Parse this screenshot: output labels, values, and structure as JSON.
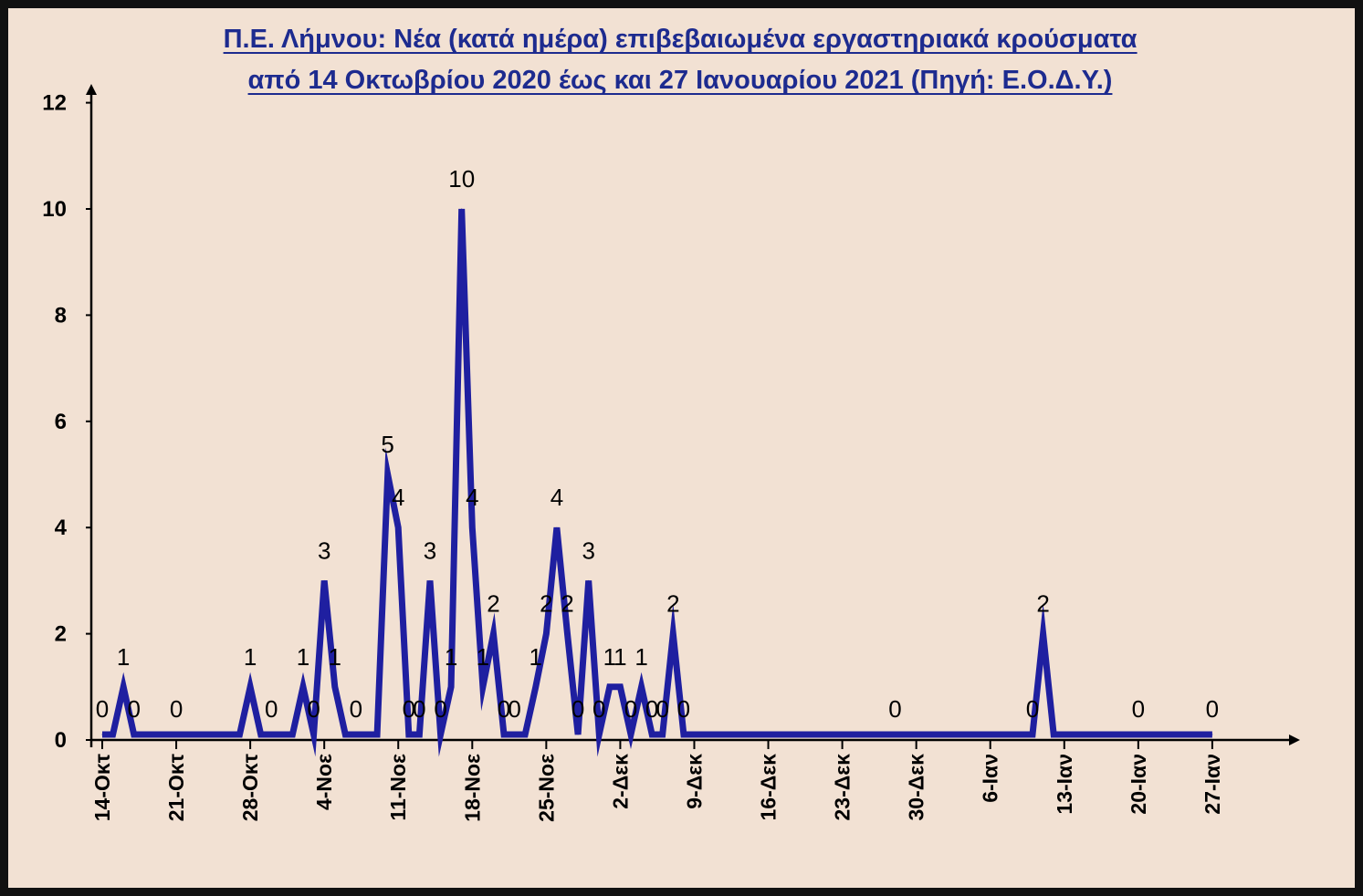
{
  "chart_data": {
    "type": "line",
    "title_line1": "Π.Ε. Λήμνου: Νέα (κατά ημέρα) επιβεβαιωμένα εργαστηριακά κρούσματα",
    "title_line2": "από 14 Οκτωβρίου 2020 έως και 27 Ιανουαρίου 2021  (Πηγή: Ε.Ο.Δ.Υ.)",
    "xlabel": "",
    "ylabel": "",
    "ylim": [
      0,
      12
    ],
    "yticks": [
      "0",
      "2",
      "4",
      "6",
      "8",
      "10",
      "12"
    ],
    "xticks": [
      "14-Οκτ",
      "21-Οκτ",
      "28-Οκτ",
      "4-Νοε",
      "11-Νοε",
      "18-Νοε",
      "25-Νοε",
      "2-Δεκ",
      "9-Δεκ",
      "16-Δεκ",
      "23-Δεκ",
      "30-Δεκ",
      "6-Ιαν",
      "13-Ιαν",
      "20-Ιαν",
      "27-Ιαν"
    ],
    "series": [
      {
        "name": "",
        "color": "#1f1fa0",
        "points": [
          {
            "x": "14-Οκτ",
            "y": 0,
            "label": "0"
          },
          {
            "x": "15-Οκτ",
            "y": 0
          },
          {
            "x": "16-Οκτ",
            "y": 1,
            "label": "1"
          },
          {
            "x": "17-Οκτ",
            "y": 0,
            "label": "0"
          },
          {
            "x": "18-Οκτ",
            "y": 0
          },
          {
            "x": "19-Οκτ",
            "y": 0
          },
          {
            "x": "20-Οκτ",
            "y": 0
          },
          {
            "x": "21-Οκτ",
            "y": 0,
            "label": "0"
          },
          {
            "x": "22-Οκτ",
            "y": 0
          },
          {
            "x": "23-Οκτ",
            "y": 0
          },
          {
            "x": "24-Οκτ",
            "y": 0
          },
          {
            "x": "25-Οκτ",
            "y": 0
          },
          {
            "x": "26-Οκτ",
            "y": 0
          },
          {
            "x": "27-Οκτ",
            "y": 0
          },
          {
            "x": "28-Οκτ",
            "y": 1,
            "label": "1"
          },
          {
            "x": "29-Οκτ",
            "y": 0
          },
          {
            "x": "30-Οκτ",
            "y": 0,
            "label": "0"
          },
          {
            "x": "31-Οκτ",
            "y": 0
          },
          {
            "x": "1-Νοε",
            "y": 0
          },
          {
            "x": "2-Νοε",
            "y": 1,
            "label": "1"
          },
          {
            "x": "3-Νοε",
            "y": 0,
            "label": "0"
          },
          {
            "x": "4-Νοε",
            "y": 3,
            "label": "3"
          },
          {
            "x": "5-Νοε",
            "y": 1,
            "label": "1"
          },
          {
            "x": "6-Νοε",
            "y": 0
          },
          {
            "x": "7-Νοε",
            "y": 0,
            "label": "0"
          },
          {
            "x": "8-Νοε",
            "y": 0
          },
          {
            "x": "9-Νοε",
            "y": 0
          },
          {
            "x": "10-Νοε",
            "y": 5,
            "label": "5"
          },
          {
            "x": "11-Νοε",
            "y": 4,
            "label": "4"
          },
          {
            "x": "12-Νοε",
            "y": 0,
            "label": "0"
          },
          {
            "x": "13-Νοε",
            "y": 0,
            "label": "0"
          },
          {
            "x": "14-Νοε",
            "y": 3,
            "label": "3"
          },
          {
            "x": "15-Νοε",
            "y": 0,
            "label": "0"
          },
          {
            "x": "16-Νοε",
            "y": 1,
            "label": "1"
          },
          {
            "x": "17-Νοε",
            "y": 10,
            "label": "10"
          },
          {
            "x": "18-Νοε",
            "y": 4,
            "label": "4"
          },
          {
            "x": "19-Νοε",
            "y": 1,
            "label": "1"
          },
          {
            "x": "20-Νοε",
            "y": 2,
            "label": "2"
          },
          {
            "x": "21-Νοε",
            "y": 0,
            "label": "0"
          },
          {
            "x": "22-Νοε",
            "y": 0,
            "label": "0"
          },
          {
            "x": "23-Νοε",
            "y": 0
          },
          {
            "x": "24-Νοε",
            "y": 1,
            "label": "1"
          },
          {
            "x": "25-Νοε",
            "y": 2,
            "label": "2"
          },
          {
            "x": "26-Νοε",
            "y": 4,
            "label": "4"
          },
          {
            "x": "27-Νοε",
            "y": 2,
            "label": "2"
          },
          {
            "x": "28-Νοε",
            "y": 0,
            "label": "0"
          },
          {
            "x": "29-Νοε",
            "y": 3,
            "label": "3"
          },
          {
            "x": "30-Νοε",
            "y": 0,
            "label": "0"
          },
          {
            "x": "1-Δεκ",
            "y": 1,
            "label": "1"
          },
          {
            "x": "2-Δεκ",
            "y": 1,
            "label": "1"
          },
          {
            "x": "3-Δεκ",
            "y": 0,
            "label": "0"
          },
          {
            "x": "4-Δεκ",
            "y": 1,
            "label": "1"
          },
          {
            "x": "5-Δεκ",
            "y": 0,
            "label": "0"
          },
          {
            "x": "6-Δεκ",
            "y": 0,
            "label": "0"
          },
          {
            "x": "7-Δεκ",
            "y": 2,
            "label": "2"
          },
          {
            "x": "8-Δεκ",
            "y": 0,
            "label": "0"
          },
          {
            "x": "28-Δεκ",
            "y": 0,
            "label": "0"
          },
          {
            "x": "10-Ιαν",
            "y": 0,
            "label": "0"
          },
          {
            "x": "11-Ιαν",
            "y": 2,
            "label": "2"
          },
          {
            "x": "12-Ιαν",
            "y": 0
          },
          {
            "x": "20-Ιαν",
            "y": 0,
            "label": "0"
          },
          {
            "x": "27-Ιαν",
            "y": 0,
            "label": "0"
          }
        ]
      }
    ],
    "grid": false,
    "legend": "none"
  }
}
